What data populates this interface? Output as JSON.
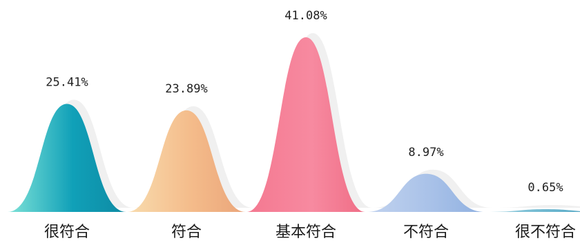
{
  "chart_data": {
    "type": "bar",
    "categories": [
      "很符合",
      "符合",
      "基本符合",
      "不符合",
      "很不符合"
    ],
    "values": [
      25.41,
      23.89,
      41.08,
      8.97,
      0.65
    ],
    "value_labels": [
      "25.41%",
      "23.89%",
      "41.08%",
      "8.97%",
      "0.65%"
    ],
    "title": "",
    "xlabel": "",
    "ylabel": "",
    "ylim": [
      0,
      41.08
    ],
    "grid": false,
    "colors": [
      [
        "#7fe3d8",
        "#10a0b8",
        "#0e8aa3"
      ],
      [
        "#f8dcae",
        "#f4bb8a",
        "#eaa57a"
      ],
      [
        "#f47890",
        "#f78aa0",
        "#ef6d86"
      ],
      [
        "#c2d3ef",
        "#a8c1e8",
        "#8fb0e0"
      ],
      [
        "#9ad0df",
        "#6bb6cf",
        "#4a9fbe"
      ]
    ]
  }
}
